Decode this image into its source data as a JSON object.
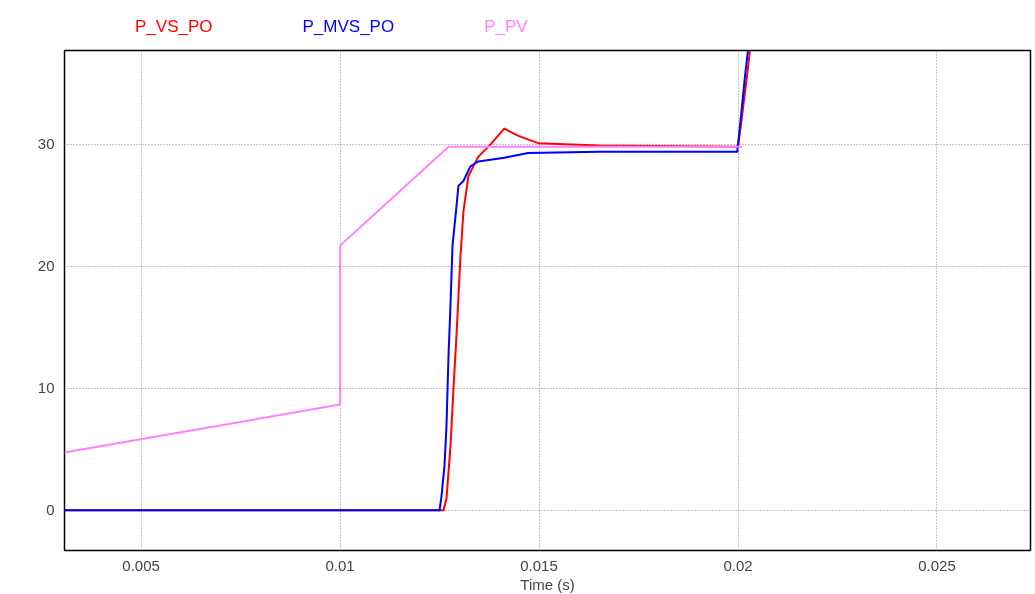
{
  "chart_data": {
    "type": "line",
    "xlabel": "Time (s)",
    "xlim": [
      0.003075,
      0.02735
    ],
    "ylim": [
      -3.3,
      37.7
    ],
    "xticks": [
      0.005,
      0.01,
      0.015,
      0.02,
      0.025
    ],
    "yticks": [
      0,
      10,
      20,
      30
    ],
    "grid": true,
    "legend": "top",
    "line_style": "solid",
    "marker": "none",
    "series": [
      {
        "name": "P_VS_PO",
        "color": "#ff0000",
        "x": [
          0.003075,
          0.0126,
          0.012675,
          0.012775,
          0.01285,
          0.012925,
          0.012975,
          0.013025,
          0.0131,
          0.013225,
          0.013475,
          0.013725,
          0.014125,
          0.01448,
          0.01498,
          0.0165,
          0.02,
          0.0201,
          0.020225,
          0.0203
        ],
        "values": [
          0,
          0,
          1,
          5.3,
          10,
          14.3,
          17.6,
          20.8,
          24.5,
          27.4,
          29,
          29.8,
          31.3,
          30.7,
          30.1,
          29.9,
          29.8,
          32.3,
          35.6,
          37.7
        ]
      },
      {
        "name": "P_MVS_PO",
        "color": "#0000ff",
        "x": [
          0.003075,
          0.0125,
          0.01255,
          0.012625,
          0.012675,
          0.012725,
          0.012775,
          0.012825,
          0.0129,
          0.012975,
          0.0131,
          0.013275,
          0.013475,
          0.014125,
          0.014725,
          0.0165,
          0.01998,
          0.02005,
          0.020175,
          0.02025
        ],
        "values": [
          0,
          0,
          1.2,
          3.7,
          7,
          12.7,
          16.8,
          21.7,
          24.1,
          26.6,
          27,
          28.2,
          28.6,
          28.9,
          29.3,
          29.4,
          29.4,
          31.5,
          35.6,
          37.7
        ]
      },
      {
        "name": "P_PV",
        "color": "#ff80ff",
        "x": [
          0.003075,
          0.01,
          0.01,
          0.012725,
          0.0201
        ],
        "values": [
          4.74,
          8.67,
          21.7,
          29.8,
          29.8
        ]
      }
    ]
  }
}
